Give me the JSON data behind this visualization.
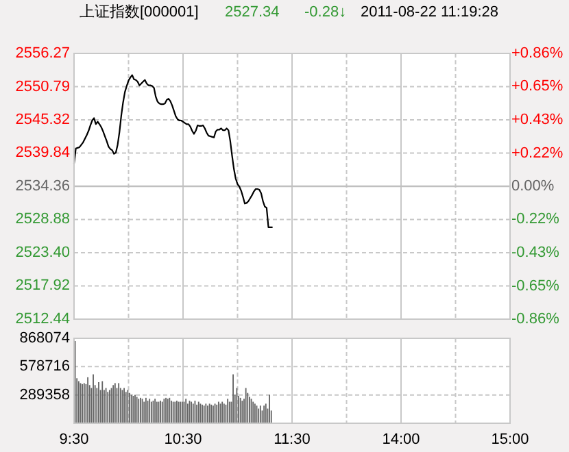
{
  "chart_data": [
    {
      "type": "line",
      "title": "上证指数[000001]",
      "annotations": [
        "2527.34",
        "-0.28↓",
        "2011-08-22 11:19:28"
      ],
      "categories": [
        null,
        null,
        null,
        null,
        null,
        null,
        null,
        null,
        null,
        null,
        null,
        null,
        null,
        null,
        null,
        null,
        null,
        null,
        null,
        null,
        null,
        null,
        null,
        null,
        null,
        null,
        null,
        null,
        null,
        null,
        null,
        null,
        null,
        null,
        null,
        null,
        null,
        null,
        null,
        null,
        null,
        null,
        null,
        null,
        null,
        null,
        null,
        null,
        null,
        null,
        null,
        null,
        null,
        null,
        null,
        null,
        null,
        null,
        null,
        null,
        null,
        null,
        null,
        null,
        null,
        null,
        null,
        null,
        null,
        null,
        null,
        null,
        null,
        null,
        null,
        null,
        null,
        null,
        null,
        null,
        null,
        null,
        null,
        null,
        null,
        null,
        null,
        null,
        null,
        null,
        null,
        null,
        null,
        null,
        null,
        null,
        null,
        null,
        null,
        null,
        null,
        null,
        null,
        null,
        null,
        null,
        null,
        null,
        null,
        null,
        null,
        null,
        null,
        null,
        null,
        null,
        null,
        null,
        null,
        null,
        null,
        null,
        null,
        null,
        null,
        null,
        null,
        null,
        null,
        null,
        null,
        null,
        null,
        null,
        null,
        null,
        null,
        null,
        null,
        null,
        null,
        null,
        null,
        null,
        null,
        null,
        null,
        null,
        null,
        null,
        null,
        null,
        null,
        null,
        null,
        null,
        null,
        null,
        null,
        null,
        null,
        null,
        null,
        null,
        null,
        null,
        null,
        null,
        null,
        null,
        null,
        null,
        null,
        null,
        null,
        null,
        null,
        null,
        null,
        null,
        null,
        null,
        null,
        null,
        null,
        null,
        null,
        null,
        null,
        null,
        null,
        null,
        null,
        null,
        null,
        null,
        null,
        null,
        null,
        null,
        null,
        null,
        null,
        null,
        null,
        null,
        null,
        null,
        null,
        null,
        null,
        null,
        null,
        null,
        null,
        null,
        null,
        null,
        null,
        null,
        null,
        null,
        null,
        null,
        null,
        null,
        null,
        null,
        null,
        null,
        null,
        null,
        null,
        null,
        null,
        null,
        null,
        null,
        null,
        null,
        null
      ],
      "series": [
        {
          "color": "#000000",
          "values": [
            2538.1,
            2540.6,
            2540.7,
            2540.8,
            2541.2,
            2541.6,
            2542.2,
            2542.8,
            2543.5,
            2544.4,
            2545.2,
            2545.6,
            2544.6,
            2545.0,
            2544.6,
            2544.1,
            2543.4,
            2542.6,
            2541.8,
            2540.9,
            2540.5,
            2540.3,
            2539.7,
            2539.9,
            2541.2,
            2543.3,
            2546.0,
            2548.2,
            2549.9,
            2550.9,
            2551.8,
            2552.3,
            2552.7,
            2552.0,
            2551.9,
            2551.6,
            2551.0,
            2551.3,
            2551.6,
            2551.9,
            2551.3,
            2551.0,
            2551.0,
            2550.9,
            2550.6,
            2549.1,
            2548.3,
            2548.0,
            2547.9,
            2547.9,
            2548.0,
            2548.6,
            2548.8,
            2548.4,
            2547.7,
            2546.8,
            2545.9,
            2545.4,
            2545.2,
            2545.2,
            2545.0,
            2544.8,
            2544.6,
            2544.6,
            2544.2,
            2543.5,
            2543.0,
            2543.5,
            2544.4,
            2544.3,
            2544.3,
            2544.4,
            2543.9,
            2543.2,
            2542.7,
            2542.6,
            2542.5,
            2542.4,
            2543.4,
            2543.7,
            2543.7,
            2543.9,
            2543.6,
            2543.6,
            2543.9,
            2543.6,
            2541.8,
            2539.4,
            2537.2,
            2535.6,
            2534.7,
            2534.3,
            2533.6,
            2532.6,
            2531.5,
            2531.6,
            2531.9,
            2532.4,
            2532.9,
            2533.5,
            2533.9,
            2533.9,
            2533.8,
            2533.2,
            2531.9,
            2531.0,
            2530.8,
            2527.6,
            2527.6,
            2527.6,
            null,
            null,
            null,
            null,
            null,
            null,
            null,
            null,
            null,
            null,
            null,
            null,
            null,
            null,
            null,
            null,
            null,
            null,
            null,
            null,
            null,
            null,
            null,
            null,
            null,
            null,
            null,
            null,
            null,
            null,
            null,
            null,
            null,
            null,
            null,
            null,
            null,
            null,
            null,
            null,
            null,
            null,
            null,
            null,
            null,
            null,
            null,
            null,
            null,
            null,
            null,
            null,
            null,
            null,
            null,
            null,
            null,
            null,
            null,
            null,
            null,
            null,
            null,
            null,
            null,
            null,
            null,
            null,
            null,
            null,
            null,
            null,
            null,
            null,
            null,
            null,
            null,
            null,
            null,
            null,
            null,
            null,
            null,
            null,
            null,
            null,
            null,
            null,
            null,
            null,
            null,
            null,
            null,
            null,
            null,
            null,
            null,
            null,
            null,
            null,
            null,
            null,
            null,
            null,
            null,
            null,
            null,
            null,
            null,
            null,
            null,
            null,
            null,
            null,
            null,
            null,
            null,
            null,
            null,
            null,
            null,
            null,
            null,
            null,
            null,
            null,
            null,
            null,
            null,
            null,
            null
          ]
        }
      ],
      "ylim": [
        2512.44,
        2556.27
      ],
      "yticks": [
        2512.44,
        2517.92,
        {
          "value": 2523.4,
          "label": "2523.40"
        },
        2528.88,
        2534.36,
        2539.84,
        2545.32,
        2550.79,
        2556.27
      ],
      "y2lim": [
        -0.865,
        0.865
      ],
      "y2ticks": [
        {
          "value": -0.865,
          "label": "-0.86%"
        },
        {
          "value": -0.649,
          "label": "-0.65%"
        },
        {
          "value": -0.432,
          "label": "-0.43%"
        },
        {
          "value": -0.216,
          "label": "-0.22%"
        },
        {
          "value": 0,
          "label": "0.00%"
        },
        {
          "value": 0.216,
          "label": "+0.22%"
        },
        {
          "value": 0.432,
          "label": "+0.43%"
        },
        {
          "value": 0.649,
          "label": "+0.65%"
        },
        {
          "value": 0.865,
          "label": "+0.86%"
        }
      ],
      "ref_lines": [
        {
          "axis": "y",
          "value": 2534.36,
          "color": "#c0c0c0"
        }
      ],
      "grid": true,
      "tick_labels": "y"
    },
    {
      "type": "bar",
      "categories": [
        "9:30",
        null,
        null,
        null,
        null,
        null,
        null,
        null,
        null,
        null,
        null,
        null,
        null,
        null,
        null,
        null,
        null,
        null,
        null,
        null,
        null,
        null,
        null,
        null,
        null,
        null,
        null,
        null,
        null,
        null,
        null,
        null,
        null,
        null,
        null,
        null,
        null,
        null,
        null,
        null,
        null,
        null,
        null,
        null,
        null,
        null,
        null,
        null,
        null,
        null,
        null,
        null,
        null,
        null,
        null,
        null,
        null,
        null,
        null,
        null,
        "10:30",
        null,
        null,
        null,
        null,
        null,
        null,
        null,
        null,
        null,
        null,
        null,
        null,
        null,
        null,
        null,
        null,
        null,
        null,
        null,
        null,
        null,
        null,
        null,
        null,
        null,
        null,
        null,
        null,
        null,
        null,
        null,
        null,
        null,
        null,
        null,
        null,
        null,
        null,
        null,
        null,
        null,
        null,
        null,
        null,
        null,
        null,
        null,
        null,
        null,
        null,
        null,
        null,
        null,
        null,
        null,
        null,
        null,
        null,
        null,
        "11:30",
        null,
        null,
        null,
        null,
        null,
        null,
        null,
        null,
        null,
        null,
        null,
        null,
        null,
        null,
        null,
        null,
        null,
        null,
        null,
        null,
        null,
        null,
        null,
        null,
        null,
        null,
        null,
        null,
        null,
        null,
        null,
        null,
        null,
        null,
        null,
        null,
        null,
        null,
        null,
        null,
        null,
        null,
        null,
        null,
        null,
        null,
        null,
        null,
        null,
        null,
        null,
        null,
        null,
        null,
        null,
        null,
        null,
        null,
        null,
        "14:00",
        null,
        null,
        null,
        null,
        null,
        null,
        null,
        null,
        null,
        null,
        null,
        null,
        null,
        null,
        null,
        null,
        null,
        null,
        null,
        null,
        null,
        null,
        null,
        null,
        null,
        null,
        null,
        null,
        null,
        null,
        null,
        null,
        null,
        null,
        null,
        null,
        null,
        null,
        null,
        null,
        null,
        null,
        null,
        null,
        null,
        null,
        null,
        null,
        null,
        null,
        null,
        null,
        null,
        null,
        null,
        null,
        null,
        null,
        null,
        "15:00"
      ],
      "series": [
        {
          "color": "#666666",
          "values": [
            840000,
            460000,
            430000,
            410000,
            400000,
            410000,
            400000,
            470000,
            390000,
            360000,
            500000,
            390000,
            360000,
            420000,
            340000,
            430000,
            340000,
            360000,
            320000,
            340000,
            360000,
            390000,
            410000,
            360000,
            410000,
            360000,
            340000,
            360000,
            320000,
            340000,
            310000,
            290000,
            280000,
            290000,
            270000,
            250000,
            260000,
            250000,
            220000,
            260000,
            230000,
            250000,
            220000,
            230000,
            250000,
            220000,
            220000,
            230000,
            220000,
            250000,
            260000,
            250000,
            260000,
            230000,
            220000,
            220000,
            230000,
            220000,
            220000,
            220000,
            220000,
            250000,
            200000,
            230000,
            220000,
            200000,
            230000,
            190000,
            220000,
            200000,
            190000,
            180000,
            200000,
            180000,
            200000,
            190000,
            180000,
            200000,
            190000,
            220000,
            200000,
            220000,
            200000,
            190000,
            250000,
            220000,
            220000,
            500000,
            290000,
            360000,
            280000,
            260000,
            230000,
            250000,
            360000,
            310000,
            270000,
            250000,
            220000,
            200000,
            180000,
            150000,
            180000,
            130000,
            180000,
            200000,
            150000,
            290000,
            130000,
            null,
            null,
            null,
            null,
            null,
            null,
            null,
            null,
            null,
            null,
            null,
            null,
            null,
            null,
            null,
            null,
            null,
            null,
            null,
            null,
            null,
            null,
            null,
            null,
            null,
            null,
            null,
            null,
            null,
            null,
            null,
            null,
            null,
            null,
            null,
            null,
            null,
            null,
            null,
            null,
            null,
            null,
            null,
            null,
            null,
            null,
            null,
            null,
            null,
            null,
            null,
            null,
            null,
            null,
            null,
            null,
            null,
            null,
            null,
            null,
            null,
            null,
            null,
            null,
            null,
            null,
            null,
            null,
            null,
            null,
            null,
            null,
            null,
            null,
            null,
            null,
            null,
            null,
            null,
            null,
            null,
            null,
            null,
            null,
            null,
            null,
            null,
            null,
            null,
            null,
            null,
            null,
            null,
            null,
            null,
            null,
            null,
            null,
            null,
            null,
            null,
            null,
            null,
            null,
            null,
            null,
            null,
            null,
            null,
            null,
            null,
            null,
            null,
            null,
            null,
            null,
            null,
            null,
            null,
            null,
            null,
            null,
            null,
            null,
            null,
            null,
            null,
            null,
            null,
            null,
            null,
            null
          ]
        }
      ],
      "ylim": [
        0,
        868074
      ],
      "yticks": [
        289358,
        578716,
        868074
      ],
      "grid": true
    }
  ]
}
